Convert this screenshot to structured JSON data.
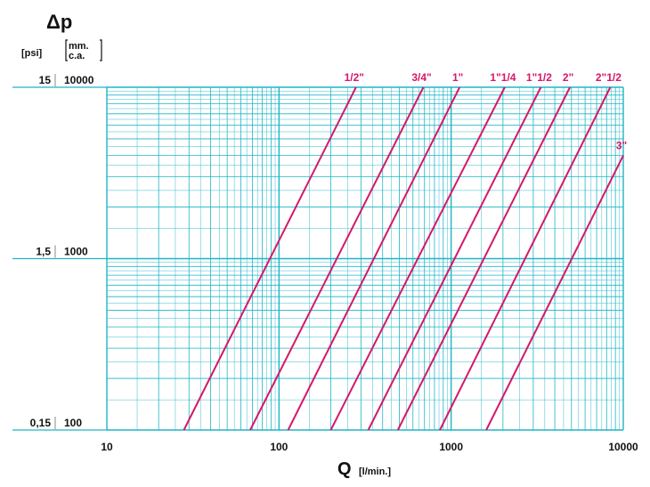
{
  "chart_data": {
    "type": "line",
    "title": "Δp",
    "xlabel": "Q",
    "xlabel_unit": "[l/min.]",
    "ylabel_psi": "[psi]",
    "ylabel_mm_line1": "mm.",
    "ylabel_mm_line2": "c.a.",
    "x_scale": "log",
    "y_scale": "log",
    "xlim": [
      10,
      10000
    ],
    "ylim": [
      100,
      10000
    ],
    "grid": true,
    "x_ticks": [
      "10",
      "100",
      "1000",
      "10000"
    ],
    "y_ticks": [
      {
        "psi": "0,15",
        "mm": "100"
      },
      {
        "psi": "1,5",
        "mm": "1000"
      },
      {
        "psi": "15",
        "mm": "10000"
      }
    ],
    "series": [
      {
        "name": "1/2\"",
        "x": [
          28,
          280
        ],
        "y": [
          100,
          10000
        ]
      },
      {
        "name": "3/4\"",
        "x": [
          68,
          690
        ],
        "y": [
          100,
          10000
        ]
      },
      {
        "name": "1\"",
        "x": [
          113,
          1120
        ],
        "y": [
          100,
          10000
        ]
      },
      {
        "name": "1\"1/4",
        "x": [
          200,
          2050
        ],
        "y": [
          100,
          10000
        ]
      },
      {
        "name": "1\"1/2",
        "x": [
          330,
          3320
        ],
        "y": [
          100,
          10000
        ]
      },
      {
        "name": "2\"",
        "x": [
          490,
          4900
        ],
        "y": [
          100,
          10000
        ]
      },
      {
        "name": "2\"1/2",
        "x": [
          860,
          8400
        ],
        "y": [
          100,
          10000
        ]
      },
      {
        "name": "3\"",
        "x": [
          1600,
          10000
        ],
        "y": [
          100,
          4000
        ]
      }
    ]
  },
  "colors": {
    "grid": "#1fb5c6",
    "curve": "#d6176a",
    "text": "#111111"
  }
}
